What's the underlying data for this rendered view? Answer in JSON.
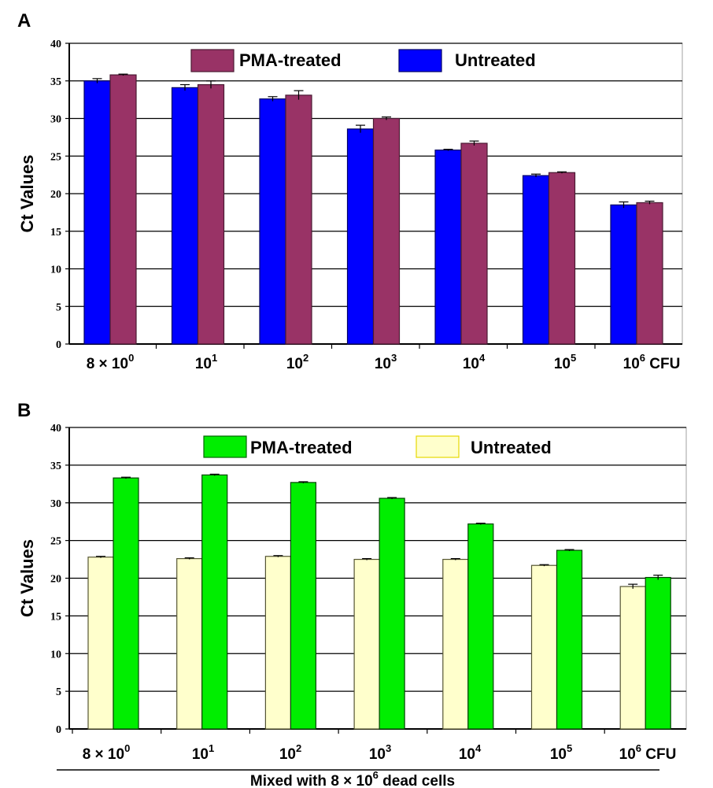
{
  "chart_data": [
    {
      "panel": "A",
      "type": "bar",
      "ylabel": "Ct Values",
      "ylim": [
        0,
        40
      ],
      "yticks": [
        "0",
        "5",
        "10",
        "15",
        "20",
        "25",
        "30",
        "35",
        "40"
      ],
      "categories": [
        {
          "base": "8 × 10",
          "exp": "0",
          "suffix": ""
        },
        {
          "base": "10",
          "exp": "1",
          "suffix": ""
        },
        {
          "base": "10",
          "exp": "2",
          "suffix": ""
        },
        {
          "base": "10",
          "exp": "3",
          "suffix": ""
        },
        {
          "base": "10",
          "exp": "4",
          "suffix": ""
        },
        {
          "base": "10",
          "exp": "5",
          "suffix": ""
        },
        {
          "base": "10",
          "exp": "6",
          "suffix": " CFU"
        }
      ],
      "grid": true,
      "legend": {
        "placement": "top",
        "entries": [
          {
            "label": "PMA-treated",
            "color": "#993366",
            "stroke": "#4a1a33"
          },
          {
            "label": "Untreated",
            "color": "#0000ff",
            "stroke": "#000066"
          }
        ]
      },
      "series": [
        {
          "name": "Untreated",
          "color": "#0000ff",
          "stroke": "#000066",
          "values": [
            35.0,
            34.1,
            32.6,
            28.6,
            25.8,
            22.4,
            18.5
          ],
          "errors": [
            0.3,
            0.4,
            0.3,
            0.5,
            0.1,
            0.2,
            0.4
          ]
        },
        {
          "name": "PMA-treated",
          "color": "#993366",
          "stroke": "#4a1a33",
          "values": [
            35.8,
            34.5,
            33.1,
            30.0,
            26.7,
            22.8,
            18.8
          ],
          "errors": [
            0.1,
            0.5,
            0.6,
            0.2,
            0.3,
            0.1,
            0.2
          ]
        }
      ]
    },
    {
      "panel": "B",
      "type": "bar",
      "ylabel": "Ct Values",
      "ylim": [
        0,
        40
      ],
      "yticks": [
        "0",
        "5",
        "10",
        "15",
        "20",
        "25",
        "30",
        "35",
        "40"
      ],
      "categories": [
        {
          "base": "8 ×  10",
          "exp": "0",
          "suffix": ""
        },
        {
          "base": "10",
          "exp": "1",
          "suffix": ""
        },
        {
          "base": "10",
          "exp": "2",
          "suffix": ""
        },
        {
          "base": "10",
          "exp": "3",
          "suffix": ""
        },
        {
          "base": "10",
          "exp": "4",
          "suffix": ""
        },
        {
          "base": "10",
          "exp": "5",
          "suffix": ""
        },
        {
          "base": "10",
          "exp": "6",
          "suffix": "  CFU"
        }
      ],
      "grid": true,
      "legend": {
        "placement": "top",
        "entries": [
          {
            "label": "PMA-treated",
            "color": "#00ee00",
            "stroke": "#006600"
          },
          {
            "label": "Untreated",
            "color": "#ffffcc",
            "stroke": "#e6d800"
          }
        ]
      },
      "series": [
        {
          "name": "Untreated",
          "color": "#ffffcc",
          "stroke": "#555533",
          "values": [
            22.8,
            22.6,
            22.9,
            22.5,
            22.5,
            21.7,
            18.9
          ],
          "errors": [
            0.1,
            0.1,
            0.1,
            0.1,
            0.1,
            0.1,
            0.3
          ]
        },
        {
          "name": "PMA-treated",
          "color": "#00ee00",
          "stroke": "#004400",
          "values": [
            33.3,
            33.7,
            32.7,
            30.6,
            27.2,
            23.7,
            20.1
          ],
          "errors": [
            0.1,
            0.1,
            0.1,
            0.1,
            0.1,
            0.1,
            0.3
          ]
        }
      ],
      "bottom_note": {
        "prefix": "Mixed with  8 × 10",
        "exp": "6",
        "suffix": " dead cells"
      }
    }
  ]
}
